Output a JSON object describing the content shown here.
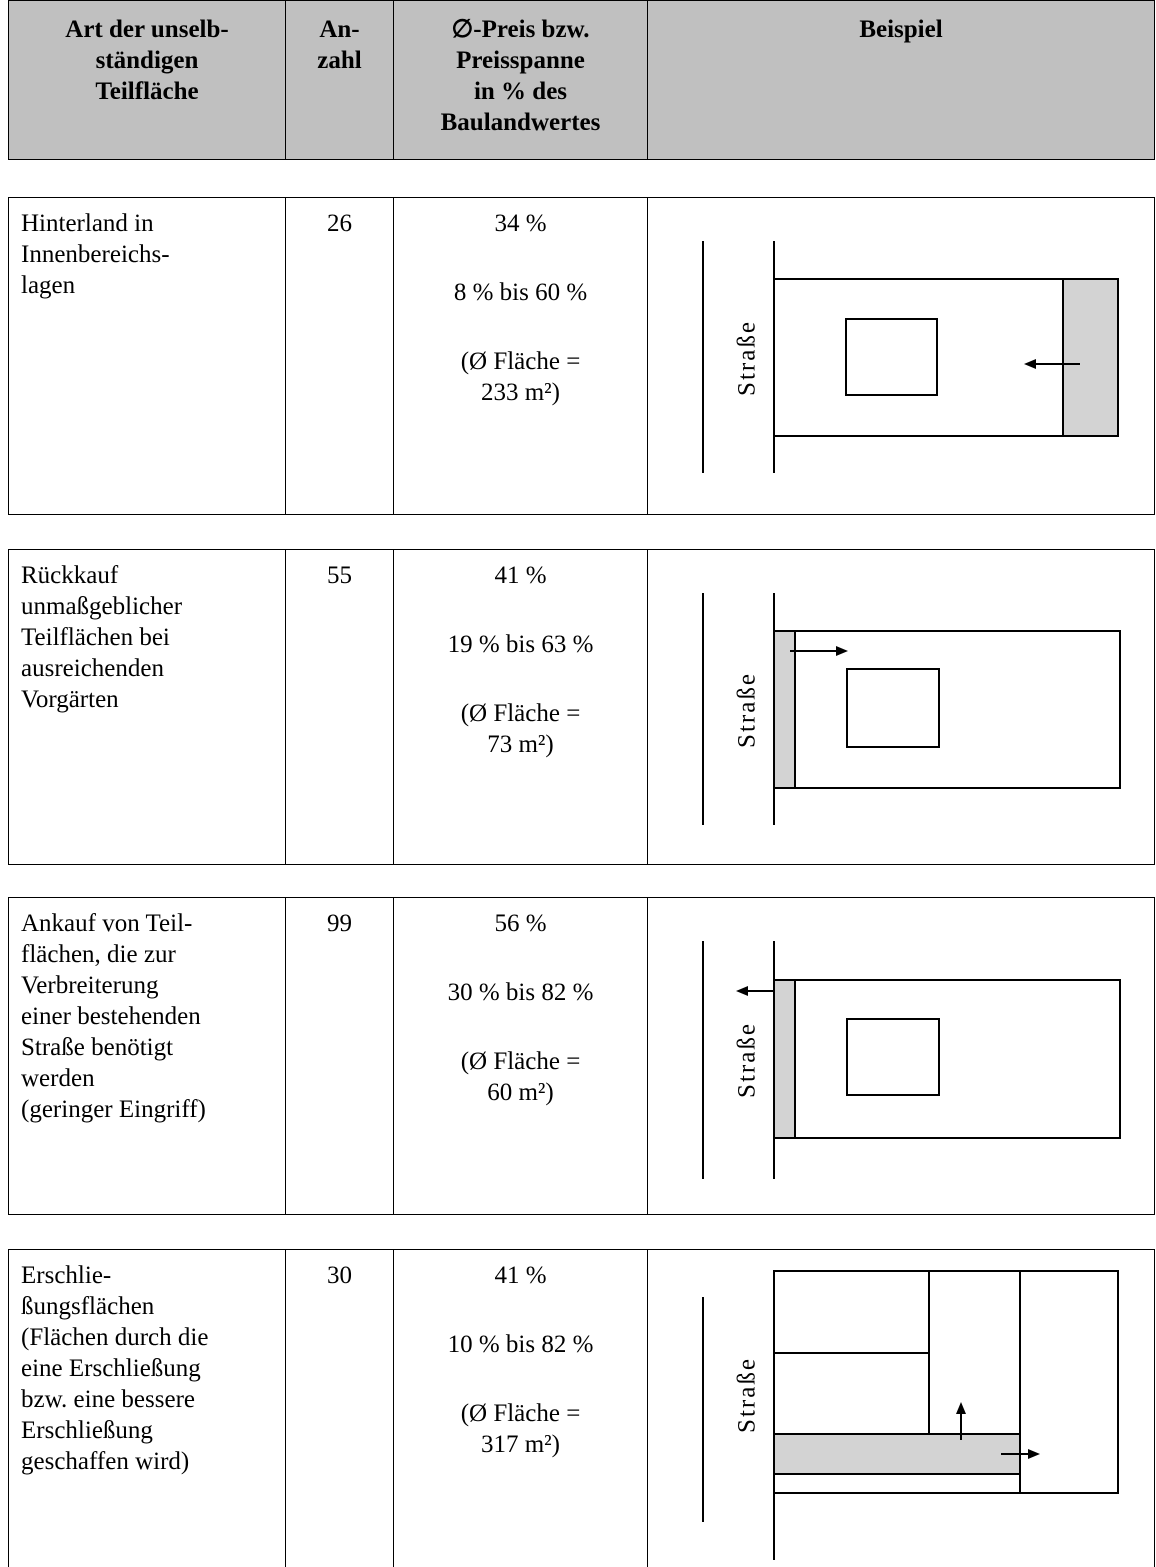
{
  "header": {
    "col1": [
      "Art der unselb-",
      "ständigen",
      "Teilfläche"
    ],
    "col2": [
      "An-",
      "zahl"
    ],
    "col3": [
      "∅-Preis bzw.",
      "Preisspanne",
      "in % des",
      "Baulandwertes"
    ],
    "col4": [
      "Beispiel"
    ]
  },
  "rows": [
    {
      "art": [
        "Hinterland in",
        "Innenbereichs-",
        "lagen"
      ],
      "anzahl": "26",
      "durchschnitt": "34 %",
      "spanne": "8 % bis 60 %",
      "flaeche_1": "(Ø Fläche =",
      "flaeche_2": "233 m²)",
      "strasse": "Straße"
    },
    {
      "art": [
        "Rückkauf",
        "unmaßgeblicher",
        "Teilflächen bei",
        "ausreichenden",
        "Vorgärten"
      ],
      "anzahl": "55",
      "durchschnitt": "41 %",
      "spanne": "19 % bis 63 %",
      "flaeche_1": "(Ø Fläche =",
      "flaeche_2": "73 m²)",
      "strasse": "Straße"
    },
    {
      "art": [
        "Ankauf von Teil-",
        "flächen, die zur",
        "Verbreiterung",
        "einer bestehenden",
        "Straße benötigt",
        "werden",
        "(geringer Eingriff)"
      ],
      "anzahl": "99",
      "durchschnitt": "56 %",
      "spanne": "30 % bis 82 %",
      "flaeche_1": "(Ø Fläche =",
      "flaeche_2": "60 m²)",
      "strasse": "Straße"
    },
    {
      "art": [
        "Erschlie-",
        "ßungsflächen",
        "(Flächen durch die",
        "eine Erschließung",
        "bzw. eine bessere",
        "Erschließung",
        "geschaffen wird)"
      ],
      "anzahl": "30",
      "durchschnitt": "41 %",
      "spanne": "10 % bis 82 %",
      "flaeche_1": "(Ø Fläche =",
      "flaeche_2": "317 m²)",
      "strasse": "Straße"
    }
  ],
  "colors": {
    "shade": "#d3d3d3",
    "header_bg": "#c0c0c0"
  }
}
